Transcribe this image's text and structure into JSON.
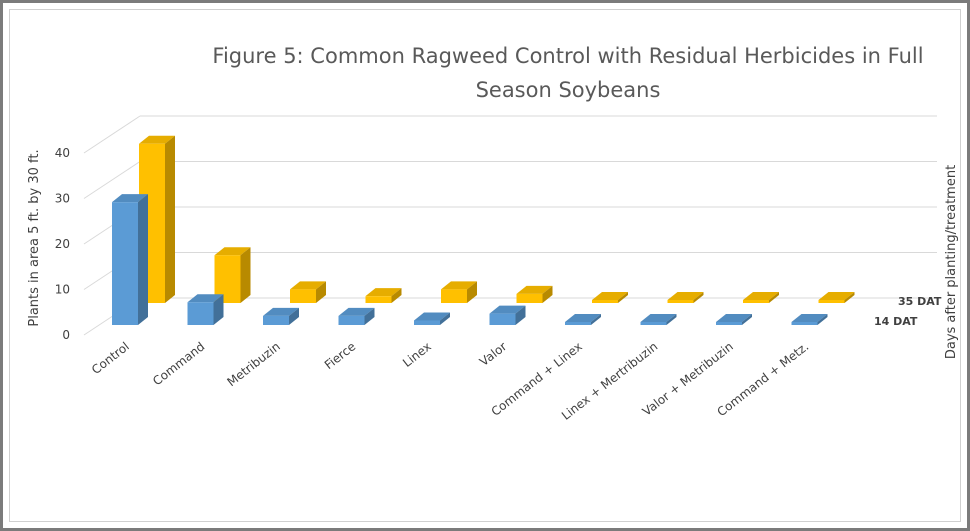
{
  "chart_data": {
    "type": "bar",
    "title_line1": "Figure 5: Common Ragweed Control with Residual Herbicides in Full",
    "title_line2": "Season Soybeans",
    "ylabel": "Plants in area 5 ft. by 30 ft.",
    "zlabel": "Days after planting/treatment",
    "ylim": [
      0,
      40
    ],
    "yticks": [
      "0",
      "10",
      "20",
      "30",
      "40"
    ],
    "grid": true,
    "categories": [
      "Control",
      "Command",
      "Metribuzin",
      "Fierce",
      "Linex",
      "Valor",
      "Command + Linex",
      "Linex + Mertribuzin",
      "Valor + Metribuzin",
      "Command + Metz."
    ],
    "series": [
      {
        "name": "14 DAT",
        "color": "#5b9bd5",
        "values": [
          27,
          5,
          2,
          2,
          1,
          2.5,
          0,
          0,
          0,
          0
        ]
      },
      {
        "name": "35 DAT",
        "color": "#ffc000",
        "values": [
          35,
          10.5,
          3,
          1.5,
          3,
          2,
          0.3,
          0.1,
          0.1,
          0.1
        ]
      }
    ]
  }
}
